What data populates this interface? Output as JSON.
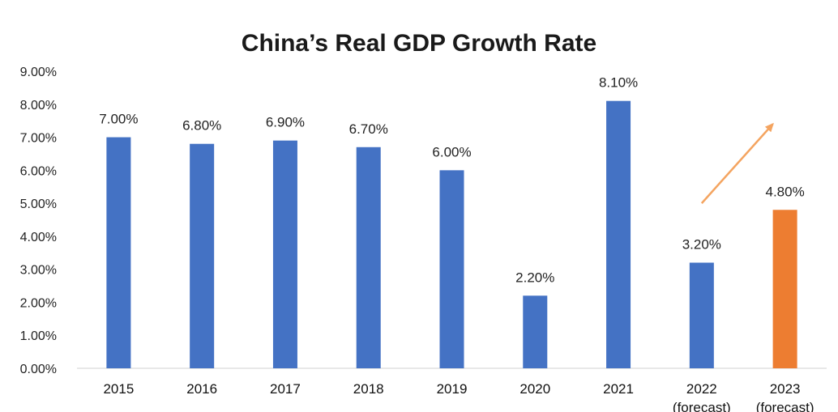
{
  "chart_data": {
    "type": "bar",
    "title": "China’s Real GDP Growth Rate",
    "xlabel": "",
    "ylabel": "",
    "ylim": [
      0,
      9
    ],
    "y_ticks": [
      "0.00%",
      "1.00%",
      "2.00%",
      "3.00%",
      "4.00%",
      "5.00%",
      "6.00%",
      "7.00%",
      "8.00%",
      "9.00%"
    ],
    "grid": false,
    "legend": "none",
    "categories": [
      [
        "2015"
      ],
      [
        "2016"
      ],
      [
        "2017"
      ],
      [
        "2018"
      ],
      [
        "2019"
      ],
      [
        "2020"
      ],
      [
        "2021"
      ],
      [
        "2022",
        "(forecast)"
      ],
      [
        "2023",
        "(forecast)"
      ]
    ],
    "values": [
      7.0,
      6.8,
      6.9,
      6.7,
      6.0,
      2.2,
      8.1,
      3.2,
      4.8
    ],
    "data_labels": [
      "7.00%",
      "6.80%",
      "6.90%",
      "6.70%",
      "6.00%",
      "2.20%",
      "8.10%",
      "3.20%",
      "4.80%"
    ],
    "bar_colors": [
      "#4472c4",
      "#4472c4",
      "#4472c4",
      "#4472c4",
      "#4472c4",
      "#4472c4",
      "#4472c4",
      "#4472c4",
      "#ed7d31"
    ],
    "annotations": [
      {
        "type": "arrow",
        "from_category": 7,
        "to_category": 8,
        "from_value": 5.0,
        "to_value": 7.4,
        "color": "#f4a460"
      }
    ]
  }
}
